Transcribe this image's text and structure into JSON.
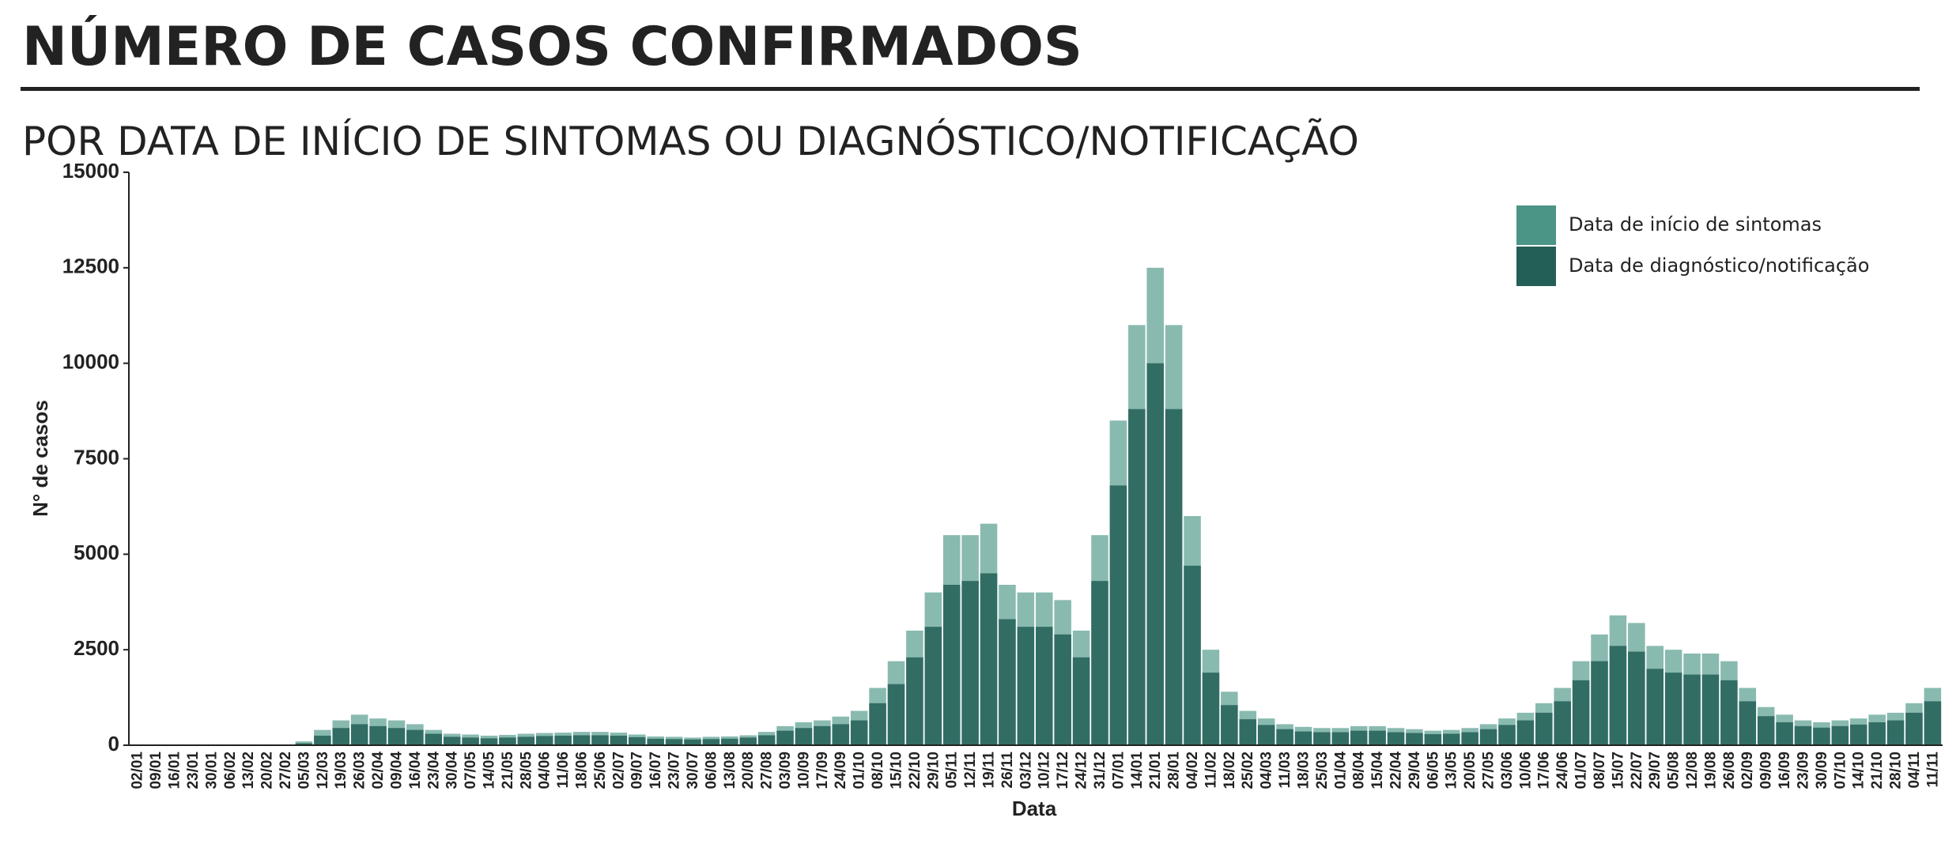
{
  "chart_data": {
    "type": "bar",
    "title": "NÚMERO DE CASOS CONFIRMADOS",
    "subtitle": "POR DATA DE INÍCIO DE SINTOMAS OU DIAGNÓSTICO/NOTIFICAÇÃO",
    "y_label": "N° de casos",
    "x_label": "Data",
    "categories": [
      "02/01",
      "09/01",
      "16/01",
      "23/01",
      "30/01",
      "06/02",
      "13/02",
      "20/02",
      "27/02",
      "05/03",
      "12/03",
      "19/03",
      "26/03",
      "02/04",
      "09/04",
      "16/04",
      "23/04",
      "30/04",
      "07/05",
      "14/05",
      "21/05",
      "28/05",
      "04/06",
      "11/06",
      "18/06",
      "25/06",
      "02/07",
      "09/07",
      "16/07",
      "23/07",
      "30/07",
      "06/08",
      "13/08",
      "20/08",
      "27/08",
      "03/09",
      "10/09",
      "17/09",
      "24/09",
      "01/10",
      "08/10",
      "15/10",
      "22/10",
      "29/10",
      "05/11",
      "12/11",
      "19/11",
      "26/11",
      "03/12",
      "10/12",
      "17/12",
      "24/12",
      "31/12",
      "07/01",
      "14/01",
      "21/01",
      "28/01",
      "04/02",
      "11/02",
      "18/02",
      "25/02",
      "04/03",
      "11/03",
      "18/03",
      "25/03",
      "01/04",
      "08/04",
      "15/04",
      "22/04",
      "29/04",
      "06/05",
      "13/05",
      "20/05",
      "27/05",
      "03/06",
      "10/06",
      "17/06",
      "24/06",
      "01/07",
      "08/07",
      "15/07",
      "22/07",
      "29/07",
      "05/08",
      "12/08",
      "19/08",
      "26/08",
      "02/09",
      "09/09",
      "16/09",
      "23/09",
      "30/09",
      "07/10",
      "14/10",
      "21/10",
      "28/10",
      "04/11",
      "11/11"
    ],
    "series": [
      {
        "name": "Data de início de sintomas",
        "color": "#4a9585",
        "values": [
          0,
          0,
          0,
          0,
          0,
          0,
          0,
          0,
          0,
          100,
          400,
          650,
          800,
          700,
          650,
          550,
          400,
          300,
          280,
          250,
          270,
          300,
          320,
          330,
          350,
          350,
          330,
          280,
          230,
          220,
          200,
          220,
          230,
          260,
          350,
          500,
          600,
          650,
          750,
          900,
          1500,
          2200,
          3000,
          4000,
          5500,
          5500,
          5800,
          4200,
          4000,
          4000,
          3800,
          3000,
          5500,
          8500,
          11000,
          12500,
          11000,
          6000,
          2500,
          1400,
          900,
          700,
          550,
          480,
          450,
          450,
          500,
          500,
          450,
          420,
          380,
          400,
          450,
          550,
          700,
          850,
          1100,
          1500,
          2200,
          2900,
          3400,
          3200,
          2600,
          2500,
          2400,
          2400,
          2200,
          1500,
          1000,
          800,
          650,
          600,
          650,
          700,
          800,
          850,
          1100,
          1500
        ]
      },
      {
        "name": "Data de diagnóstico/notificação",
        "color": "#235f57",
        "values": [
          0,
          0,
          0,
          0,
          0,
          0,
          0,
          0,
          0,
          50,
          250,
          450,
          550,
          500,
          450,
          400,
          300,
          220,
          200,
          180,
          200,
          220,
          240,
          250,
          260,
          260,
          250,
          210,
          170,
          160,
          150,
          160,
          170,
          200,
          260,
          380,
          450,
          500,
          550,
          650,
          1100,
          1600,
          2300,
          3100,
          4200,
          4300,
          4500,
          3300,
          3100,
          3100,
          2900,
          2300,
          4300,
          6800,
          8800,
          10000,
          8800,
          4700,
          1900,
          1050,
          680,
          530,
          420,
          360,
          340,
          340,
          380,
          380,
          340,
          320,
          290,
          300,
          340,
          420,
          530,
          650,
          850,
          1150,
          1700,
          2200,
          2600,
          2450,
          2000,
          1900,
          1850,
          1850,
          1700,
          1150,
          760,
          600,
          500,
          460,
          500,
          540,
          600,
          650,
          850,
          1150
        ]
      }
    ],
    "ylim": [
      0,
      15000
    ],
    "yticks": [
      0,
      2500,
      5000,
      7500,
      10000,
      12500,
      15000
    ],
    "legend": "top-right"
  }
}
